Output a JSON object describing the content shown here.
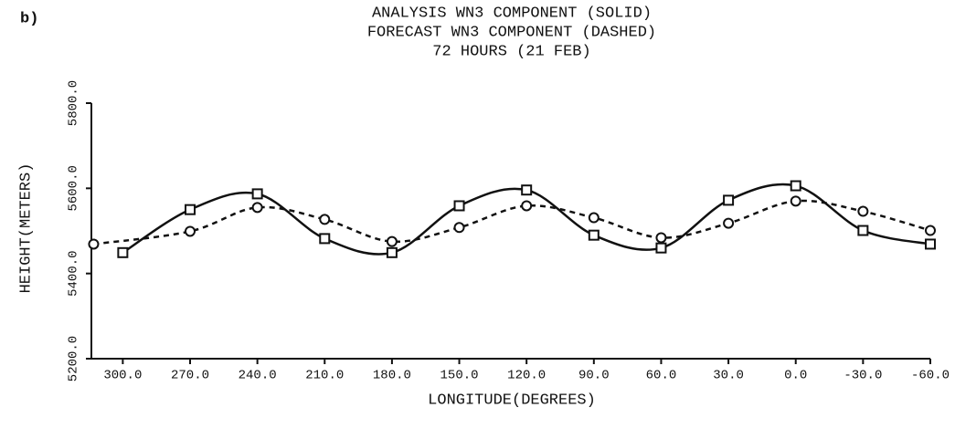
{
  "panel_label": "b)",
  "chart_data": {
    "type": "line",
    "title": "ANALYSIS WN3 COMPONENT (SOLID)",
    "subtitle": "FORECAST WN3 COMPONENT (DASHED)",
    "annotation": "72 HOURS (21 FEB)",
    "xlabel": "LONGITUDE(DEGREES)",
    "ylabel": "HEIGHT(METERS)",
    "xlim": [
      314,
      -60
    ],
    "ylim": [
      5200,
      5800
    ],
    "xticks": [
      {
        "value": 300,
        "label": "300.0"
      },
      {
        "value": 270,
        "label": "270.0"
      },
      {
        "value": 240,
        "label": "240.0"
      },
      {
        "value": 210,
        "label": "210.0"
      },
      {
        "value": 180,
        "label": "180.0"
      },
      {
        "value": 150,
        "label": "150.0"
      },
      {
        "value": 120,
        "label": "120.0"
      },
      {
        "value": 90,
        "label": "90.0"
      },
      {
        "value": 60,
        "label": "60.0"
      },
      {
        "value": 30,
        "label": "30.0"
      },
      {
        "value": 0,
        "label": "0.0"
      },
      {
        "value": -30,
        "label": "-30.0"
      },
      {
        "value": -60,
        "label": "-60.0"
      }
    ],
    "yticks": [
      {
        "value": 5200,
        "label": "5200.0"
      },
      {
        "value": 5400,
        "label": "5400.0"
      },
      {
        "value": 5600,
        "label": "5600.0"
      },
      {
        "value": 5800,
        "label": "5800.0"
      }
    ],
    "series": [
      {
        "color": "#111111",
        "dash": false,
        "marker": "square",
        "x": [
          300,
          270,
          240,
          210,
          180,
          150,
          120,
          90,
          60,
          30,
          0,
          -30,
          -60
        ],
        "values": [
          5449,
          5550,
          5587,
          5482,
          5449,
          5559,
          5596,
          5490,
          5460,
          5572,
          5606,
          5501,
          5469
        ]
      },
      {
        "color": "#111111",
        "dash": true,
        "marker": "circle",
        "x": [
          313,
          270,
          240,
          210,
          180,
          150,
          120,
          90,
          60,
          30,
          0,
          -30,
          -60
        ],
        "values": [
          5469,
          5499,
          5555,
          5527,
          5475,
          5508,
          5559,
          5531,
          5484,
          5518,
          5570,
          5546,
          5501
        ]
      }
    ]
  }
}
